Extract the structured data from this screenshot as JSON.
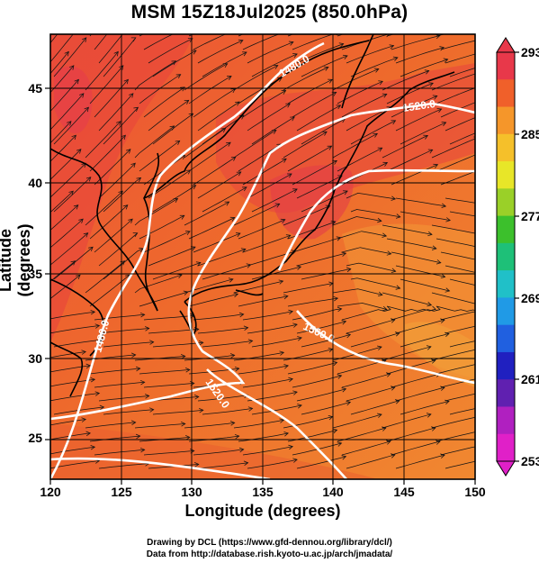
{
  "title": "MSM 15Z18Jul2025 (850.0hPa)",
  "axis": {
    "xlabel": "Longitude (degrees)",
    "ylabel": "Latitude  (degrees)",
    "x_ticks": [
      "120",
      "125",
      "130",
      "135",
      "140",
      "145",
      "150"
    ],
    "y_ticks": [
      "25",
      "30",
      "35",
      "40",
      "45"
    ]
  },
  "colorbar": {
    "ticks": [
      "293",
      "285",
      "277",
      "269",
      "261",
      "253"
    ],
    "colors": [
      "#e8384a",
      "#f0602a",
      "#f5962a",
      "#f5c02a",
      "#e8e628",
      "#9ad028",
      "#3cc02c",
      "#1ec078",
      "#20c0c8",
      "#209ae6",
      "#2060e0",
      "#2020c0",
      "#6020b0",
      "#b020c0",
      "#e020c8"
    ]
  },
  "contours": {
    "labels": [
      "1480.0",
      "1520.0",
      "1480.0",
      "1520.0",
      "1560.0"
    ]
  },
  "credits": {
    "line1": "Drawing by DCL (https://www.gfd-dennou.org/library/dcl/)",
    "line2": "Data from http://database.rish.kyoto-u.ac.jp/arch/jmadata/"
  },
  "chart_data": {
    "type": "heatmap",
    "title": "MSM 15Z18Jul2025 (850.0hPa)",
    "xlabel": "Longitude (degrees)",
    "ylabel": "Latitude  (degrees)",
    "xlim": [
      120,
      150
    ],
    "ylim": [
      22.4,
      47.6
    ],
    "x_ticks": [
      120,
      125,
      130,
      135,
      140,
      145,
      150
    ],
    "y_ticks": [
      25,
      30,
      35,
      40,
      45
    ],
    "color_scale": {
      "min": 253,
      "max": 293,
      "ticks": [
        293,
        285,
        277,
        269,
        261,
        253
      ]
    },
    "contour_levels": [
      1480,
      1520,
      1560
    ],
    "grid": true
  }
}
